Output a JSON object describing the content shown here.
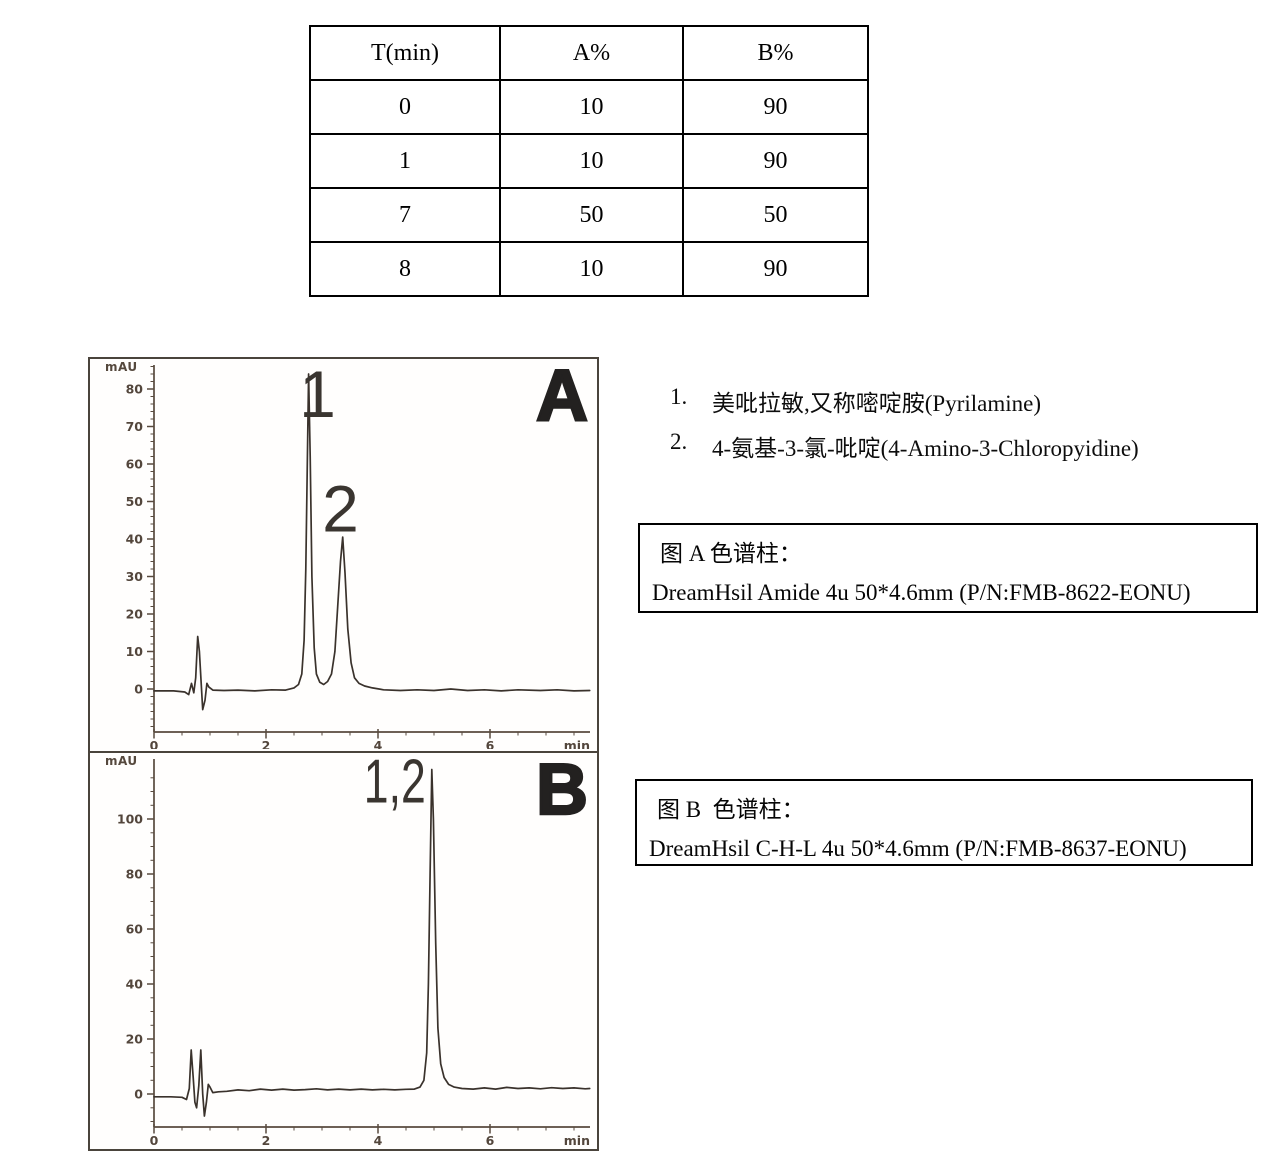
{
  "gradient_table": {
    "headers": [
      "T(min)",
      "A%",
      "B%"
    ],
    "rows": [
      [
        "0",
        "10",
        "90"
      ],
      [
        "1",
        "10",
        "90"
      ],
      [
        "7",
        "50",
        "50"
      ],
      [
        "8",
        "10",
        "90"
      ]
    ]
  },
  "legend_items": [
    {
      "index": "1.",
      "text": "美吡拉敏,又称嘧啶胺(Pyrilamine)"
    },
    {
      "index": "2.",
      "text": "4-氨基-3-氯-吡啶(4-Amino-3-Chloropyidine)"
    }
  ],
  "column_boxes": [
    {
      "title": "图 A 色谱柱：",
      "detail": "DreamHsil Amide 4u 50*4.6mm (P/N:FMB-8622-EONU)"
    },
    {
      "title": "图 B  色谱柱：",
      "detail": "DreamHsil C-H-L 4u 50*4.6mm (P/N:FMB-8637-EONU)"
    }
  ],
  "colors": {
    "trace": "#3a322c",
    "axis": "#584a3e",
    "text": "#000000"
  },
  "chart_data": [
    {
      "type": "line",
      "panel_label": "A",
      "y_axis_label": "mAU",
      "x_axis_label": "min",
      "x_ticks": [
        0,
        2,
        4,
        6
      ],
      "x_minor_step": 0.5,
      "x_range": [
        0,
        7.78
      ],
      "y_ticks": [
        0,
        10,
        20,
        30,
        40,
        50,
        60,
        70,
        80
      ],
      "y_minor_step": 2,
      "y_range": [
        -11,
        87
      ],
      "grid": false,
      "peaks": [
        {
          "label": "1",
          "t": 2.76,
          "mau": 84,
          "label_t": 2.92,
          "label_mau": 72.5
        },
        {
          "label": "2",
          "t": 3.37,
          "mau": 40.5,
          "label_t": 3.33,
          "label_mau": 42
        }
      ],
      "trace": [
        [
          0,
          -0.5
        ],
        [
          0.35,
          -0.5
        ],
        [
          0.55,
          -0.8
        ],
        [
          0.62,
          -1.5
        ],
        [
          0.67,
          1.5
        ],
        [
          0.71,
          -1
        ],
        [
          0.745,
          3
        ],
        [
          0.78,
          14
        ],
        [
          0.81,
          10
        ],
        [
          0.845,
          1
        ],
        [
          0.87,
          -5.5
        ],
        [
          0.91,
          -3
        ],
        [
          0.945,
          1.5
        ],
        [
          0.98,
          0.5
        ],
        [
          1.05,
          -0.3
        ],
        [
          1.25,
          -0.4
        ],
        [
          1.5,
          -0.3
        ],
        [
          1.8,
          -0.5
        ],
        [
          2.1,
          -0.2
        ],
        [
          2.35,
          -0.3
        ],
        [
          2.5,
          0.3
        ],
        [
          2.58,
          1.2
        ],
        [
          2.64,
          4
        ],
        [
          2.68,
          13
        ],
        [
          2.71,
          32
        ],
        [
          2.735,
          58
        ],
        [
          2.76,
          84
        ],
        [
          2.79,
          62
        ],
        [
          2.82,
          30
        ],
        [
          2.86,
          11
        ],
        [
          2.9,
          4
        ],
        [
          2.96,
          1.8
        ],
        [
          3.03,
          1.2
        ],
        [
          3.1,
          2
        ],
        [
          3.17,
          4
        ],
        [
          3.23,
          10
        ],
        [
          3.28,
          22
        ],
        [
          3.33,
          34
        ],
        [
          3.37,
          40.5
        ],
        [
          3.41,
          31
        ],
        [
          3.46,
          16
        ],
        [
          3.52,
          7
        ],
        [
          3.58,
          3
        ],
        [
          3.66,
          1.5
        ],
        [
          3.76,
          0.8
        ],
        [
          3.9,
          0.3
        ],
        [
          4.1,
          -0.2
        ],
        [
          4.4,
          -0.4
        ],
        [
          4.7,
          -0.2
        ],
        [
          5.0,
          -0.4
        ],
        [
          5.3,
          0
        ],
        [
          5.6,
          -0.4
        ],
        [
          5.9,
          -0.2
        ],
        [
          6.2,
          -0.5
        ],
        [
          6.5,
          -0.2
        ],
        [
          6.9,
          -0.4
        ],
        [
          7.2,
          -0.2
        ],
        [
          7.5,
          -0.5
        ],
        [
          7.78,
          -0.4
        ]
      ]
    },
    {
      "type": "line",
      "panel_label": "B",
      "y_axis_label": "mAU",
      "x_axis_label": "min",
      "x_ticks": [
        0,
        2,
        4,
        6
      ],
      "x_minor_step": 0.5,
      "x_range": [
        0,
        7.78
      ],
      "y_ticks": [
        0,
        20,
        40,
        60,
        80,
        100
      ],
      "y_minor_step": 5,
      "y_range": [
        -12,
        120
      ],
      "grid": false,
      "peaks": [
        {
          "label": "1,2",
          "t": 4.96,
          "mau": 118,
          "label_t": 4.3,
          "label_mau": 106
        }
      ],
      "trace": [
        [
          0,
          -1
        ],
        [
          0.3,
          -1
        ],
        [
          0.5,
          -1.2
        ],
        [
          0.58,
          -2
        ],
        [
          0.63,
          2
        ],
        [
          0.665,
          16
        ],
        [
          0.7,
          6
        ],
        [
          0.73,
          -3
        ],
        [
          0.76,
          -5
        ],
        [
          0.8,
          3
        ],
        [
          0.835,
          16
        ],
        [
          0.87,
          0
        ],
        [
          0.9,
          -8
        ],
        [
          0.935,
          -3
        ],
        [
          0.97,
          3.5
        ],
        [
          1.0,
          2.5
        ],
        [
          1.05,
          0.5
        ],
        [
          1.15,
          0.8
        ],
        [
          1.3,
          1
        ],
        [
          1.5,
          1.5
        ],
        [
          1.7,
          1.2
        ],
        [
          1.9,
          1.8
        ],
        [
          2.1,
          1.4
        ],
        [
          2.3,
          1.8
        ],
        [
          2.5,
          1.4
        ],
        [
          2.7,
          1.6
        ],
        [
          2.9,
          1.9
        ],
        [
          3.1,
          1.5
        ],
        [
          3.3,
          1.8
        ],
        [
          3.5,
          1.5
        ],
        [
          3.7,
          1.8
        ],
        [
          3.9,
          1.5
        ],
        [
          4.1,
          1.7
        ],
        [
          4.3,
          1.5
        ],
        [
          4.5,
          1.7
        ],
        [
          4.65,
          1.8
        ],
        [
          4.75,
          2.5
        ],
        [
          4.82,
          5
        ],
        [
          4.87,
          15
        ],
        [
          4.9,
          40
        ],
        [
          4.93,
          80
        ],
        [
          4.96,
          118
        ],
        [
          4.99,
          100
        ],
        [
          5.03,
          55
        ],
        [
          5.07,
          24
        ],
        [
          5.12,
          11
        ],
        [
          5.18,
          6
        ],
        [
          5.26,
          3.5
        ],
        [
          5.36,
          2.5
        ],
        [
          5.5,
          2
        ],
        [
          5.7,
          1.8
        ],
        [
          5.9,
          2.2
        ],
        [
          6.1,
          1.8
        ],
        [
          6.3,
          2.4
        ],
        [
          6.5,
          2
        ],
        [
          6.7,
          2.2
        ],
        [
          6.9,
          1.9
        ],
        [
          7.1,
          2.3
        ],
        [
          7.3,
          2
        ],
        [
          7.5,
          2.2
        ],
        [
          7.7,
          1.9
        ],
        [
          7.78,
          2
        ]
      ]
    }
  ]
}
